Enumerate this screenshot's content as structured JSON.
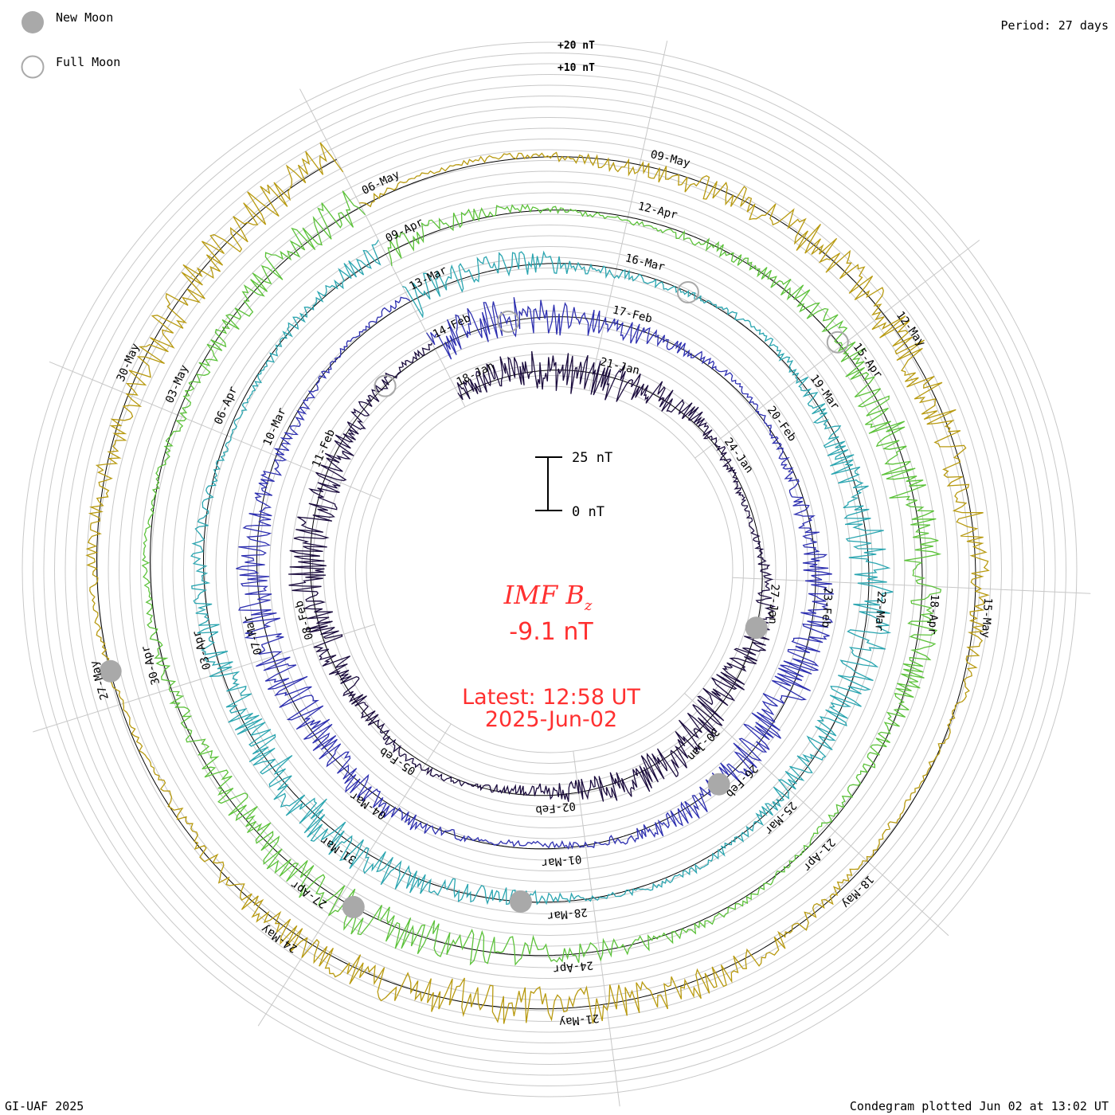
{
  "legend": {
    "new_moon_label": "New Moon",
    "full_moon_label": "Full Moon",
    "new_moon_color": "#a9a9a9",
    "full_moon_color": "#a9a9a9"
  },
  "header": {
    "period_label": "Period: 27 days"
  },
  "footer": {
    "credit": "GI-UAF 2025",
    "plotted": "Condegram plotted Jun 02 at 13:02 UT"
  },
  "center": {
    "title_main": "IMF B",
    "title_sub": "z",
    "current_value": "-9.1 nT",
    "latest_line1": "Latest: 12:58 UT",
    "latest_line2": "2025-Jun-02",
    "text_color": "#ff3030"
  },
  "scale_bar": {
    "top_label": "25 nT",
    "bottom_label": "0 nT"
  },
  "chart_data": {
    "type": "line",
    "title": "IMF Bz",
    "period_days": 27,
    "units": "nT",
    "reference_labels": [
      "+20 nT",
      "+10 nT"
    ],
    "grid": true,
    "series": [
      {
        "start": "18-Jan",
        "end": "14-Feb",
        "color": "#1a0b3d",
        "date_labels": [
          "18-Jan",
          "21-Jan",
          "24-Jan",
          "27-Jan",
          "30-Jan",
          "02-Feb",
          "05-Feb",
          "08-Feb",
          "11-Feb"
        ]
      },
      {
        "start": "14-Feb",
        "end": "13-Mar",
        "color": "#2d2fb0",
        "date_labels": [
          "14-Feb",
          "17-Feb",
          "20-Feb",
          "23-Feb",
          "26-Feb",
          "01-Mar",
          "04-Mar",
          "07-Mar",
          "10-Mar"
        ]
      },
      {
        "start": "13-Mar",
        "end": "09-Apr",
        "color": "#2aa5b0",
        "date_labels": [
          "13-Mar",
          "16-Mar",
          "19-Mar",
          "22-Mar",
          "25-Mar",
          "28-Mar",
          "31-Mar",
          "03-Apr",
          "06-Apr"
        ]
      },
      {
        "start": "09-Apr",
        "end": "06-May",
        "color": "#5cc23a",
        "date_labels": [
          "09-Apr",
          "12-Apr",
          "15-Apr",
          "18-Apr",
          "21-Apr",
          "24-Apr",
          "27-Apr",
          "30-Apr",
          "03-May"
        ]
      },
      {
        "start": "06-May",
        "end": "02-Jun",
        "color": "#b89a10",
        "date_labels": [
          "06-May",
          "09-May",
          "12-May",
          "15-May",
          "18-May",
          "21-May",
          "24-May",
          "27-May",
          "30-May"
        ]
      }
    ],
    "new_moons": [
      "28-Jan",
      "27-Feb",
      "29-Mar",
      "27-Apr",
      "27-May"
    ],
    "full_moons": [
      "13-Feb",
      "14-Mar",
      "13-Apr",
      "12-May"
    ],
    "latest_value": -9.1
  }
}
